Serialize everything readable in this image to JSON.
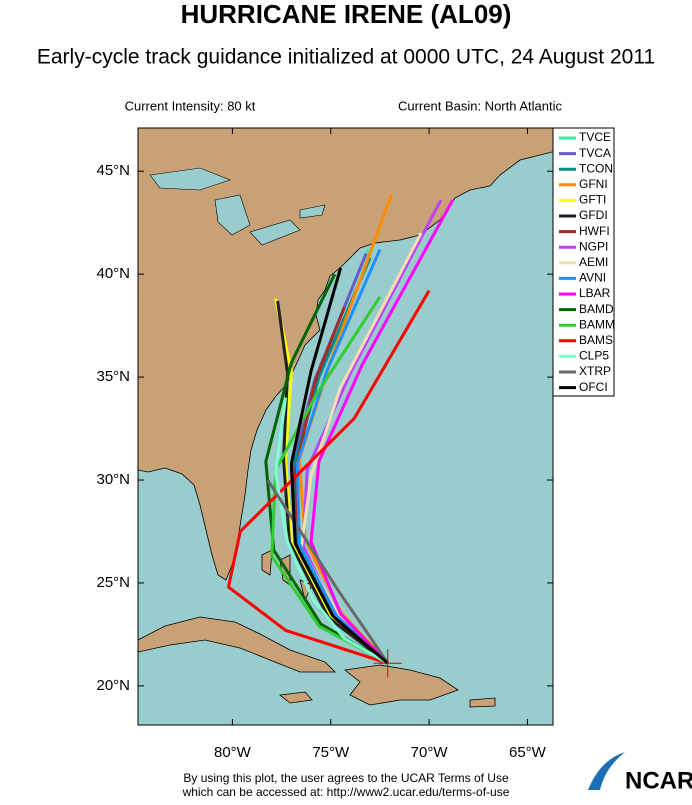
{
  "chart_data": {
    "type": "track-map",
    "title": "HURRICANE IRENE (AL09)",
    "subtitle": "Early-cycle track guidance initialized at 0000 UTC, 24 August 2011",
    "annotations": [
      "Current Intensity: 80 kt",
      "Current Basin: North Atlantic"
    ],
    "footer": [
      "By using this plot, the user agrees to the UCAR Terms of Use",
      "which can be accessed at: http://www2.ucar.edu/terms-of-use"
    ],
    "logo": "NCAR",
    "xlim": [
      -84.8,
      -63.7
    ],
    "ylim": [
      18.1,
      47.1
    ],
    "xticks": [
      {
        "value": -80,
        "label": "80°W"
      },
      {
        "value": -75,
        "label": "75°W"
      },
      {
        "value": -70,
        "label": "70°W"
      },
      {
        "value": -65,
        "label": "65°W"
      }
    ],
    "yticks": [
      {
        "value": 20,
        "label": "20°N"
      },
      {
        "value": 25,
        "label": "25°N"
      },
      {
        "value": 30,
        "label": "30°N"
      },
      {
        "value": 35,
        "label": "35°N"
      },
      {
        "value": 40,
        "label": "40°N"
      },
      {
        "value": 45,
        "label": "45°N"
      }
    ],
    "legend": "upper right",
    "series": [
      {
        "name": "TVCE",
        "color": "#3ee8a0",
        "x": [
          -72.1,
          -74.9,
          -76.8,
          -77.0,
          -75.8,
          -73.1
        ],
        "values": [
          21.1,
          23.4,
          26.8,
          30.5,
          34.9,
          41.2
        ]
      },
      {
        "name": "TVCA",
        "color": "#6a5acd",
        "x": [
          -72.1,
          -74.9,
          -76.8,
          -77.0,
          -75.8,
          -73.2
        ],
        "values": [
          21.1,
          23.4,
          26.8,
          30.5,
          34.9,
          41.0
        ]
      },
      {
        "name": "TCON",
        "color": "#008b8b",
        "x": [
          -72.1,
          -74.8,
          -76.7,
          -76.9,
          -75.6,
          -73.0
        ],
        "values": [
          21.1,
          23.5,
          26.9,
          30.6,
          35.0,
          40.8
        ]
      },
      {
        "name": "GFNI",
        "color": "#ff8c00",
        "x": [
          -72.1,
          -74.5,
          -76.3,
          -76.6,
          -75.0,
          -71.9
        ],
        "values": [
          21.1,
          23.6,
          27.1,
          31.0,
          35.8,
          43.9
        ]
      },
      {
        "name": "GFTI",
        "color": "#ffff00",
        "x": [
          -72.1,
          -75.0,
          -77.0,
          -77.3,
          -77.0,
          -77.8
        ],
        "values": [
          21.1,
          23.3,
          27.0,
          31.0,
          35.3,
          38.8
        ]
      },
      {
        "name": "GFDI",
        "color": "#222222",
        "x": [
          -72.1,
          -75.1,
          -77.1,
          -77.4,
          -77.2,
          -77.7
        ],
        "values": [
          21.1,
          23.3,
          27.0,
          31.0,
          35.2,
          38.7
        ]
      },
      {
        "name": "HWFI",
        "color": "#a52a2a",
        "x": [
          -72.1,
          -74.8,
          -76.6,
          -76.8,
          -75.8,
          -74.3
        ],
        "values": [
          21.1,
          23.3,
          26.5,
          30.4,
          34.8,
          38.4
        ]
      },
      {
        "name": "NGPI",
        "color": "#c040ff",
        "x": [
          -72.1,
          -74.7,
          -76.4,
          -76.2,
          -74.0,
          -69.4
        ],
        "values": [
          21.1,
          23.4,
          26.8,
          30.5,
          35.2,
          43.6
        ]
      },
      {
        "name": "AEMI",
        "color": "#f5deb3",
        "x": [
          -72.1,
          -74.6,
          -76.5,
          -76.0,
          -74.5,
          -70.4
        ],
        "values": [
          21.1,
          23.4,
          26.7,
          30.2,
          34.5,
          42.0
        ]
      },
      {
        "name": "AVNI",
        "color": "#1e90ff",
        "x": [
          -72.1,
          -74.7,
          -76.6,
          -76.7,
          -75.2,
          -72.5
        ],
        "values": [
          21.1,
          23.4,
          26.9,
          30.8,
          35.3,
          41.2
        ]
      },
      {
        "name": "LBAR",
        "color": "#ff00ff",
        "x": [
          -72.1,
          -74.5,
          -76.0,
          -75.6,
          -73.4,
          -68.8
        ],
        "values": [
          21.1,
          23.5,
          27.0,
          30.9,
          35.6,
          43.6
        ]
      },
      {
        "name": "BAMD",
        "color": "#006400",
        "x": [
          -72.1,
          -75.5,
          -77.9,
          -78.3,
          -77.0,
          -74.8
        ],
        "values": [
          21.1,
          23.0,
          26.6,
          30.9,
          35.7,
          40.0
        ]
      },
      {
        "name": "BAMM",
        "color": "#32cd32",
        "x": [
          -72.1,
          -75.6,
          -78.0,
          -77.8,
          -75.7,
          -72.5
        ],
        "values": [
          21.1,
          22.9,
          26.3,
          30.5,
          34.2,
          38.9
        ]
      },
      {
        "name": "BAMS",
        "color": "#ff0000",
        "x": [
          -72.1,
          -77.3,
          -80.2,
          -79.6,
          -73.8,
          -70.0
        ],
        "values": [
          21.1,
          22.7,
          24.8,
          27.5,
          33.0,
          39.2
        ]
      },
      {
        "name": "CLP5",
        "color": "#7fffd4",
        "x": [
          -72.1,
          -74.3,
          -75.9,
          -77.2,
          -77.8,
          -77.3
        ],
        "values": [
          21.1,
          22.3,
          24.2,
          27.0,
          30.3,
          34.0
        ]
      },
      {
        "name": "XTRP",
        "color": "#696969",
        "x": [
          -72.1,
          -73.3,
          -74.6,
          -75.8,
          -77.0,
          -78.2
        ],
        "values": [
          21.1,
          22.8,
          24.6,
          26.4,
          28.2,
          30.0
        ]
      },
      {
        "name": "OFCI",
        "color": "#000000",
        "x": [
          -72.1,
          -74.9,
          -76.8,
          -77.0,
          -76.0,
          -74.5
        ],
        "values": [
          21.1,
          23.4,
          26.9,
          30.8,
          35.3,
          40.3
        ]
      }
    ]
  }
}
